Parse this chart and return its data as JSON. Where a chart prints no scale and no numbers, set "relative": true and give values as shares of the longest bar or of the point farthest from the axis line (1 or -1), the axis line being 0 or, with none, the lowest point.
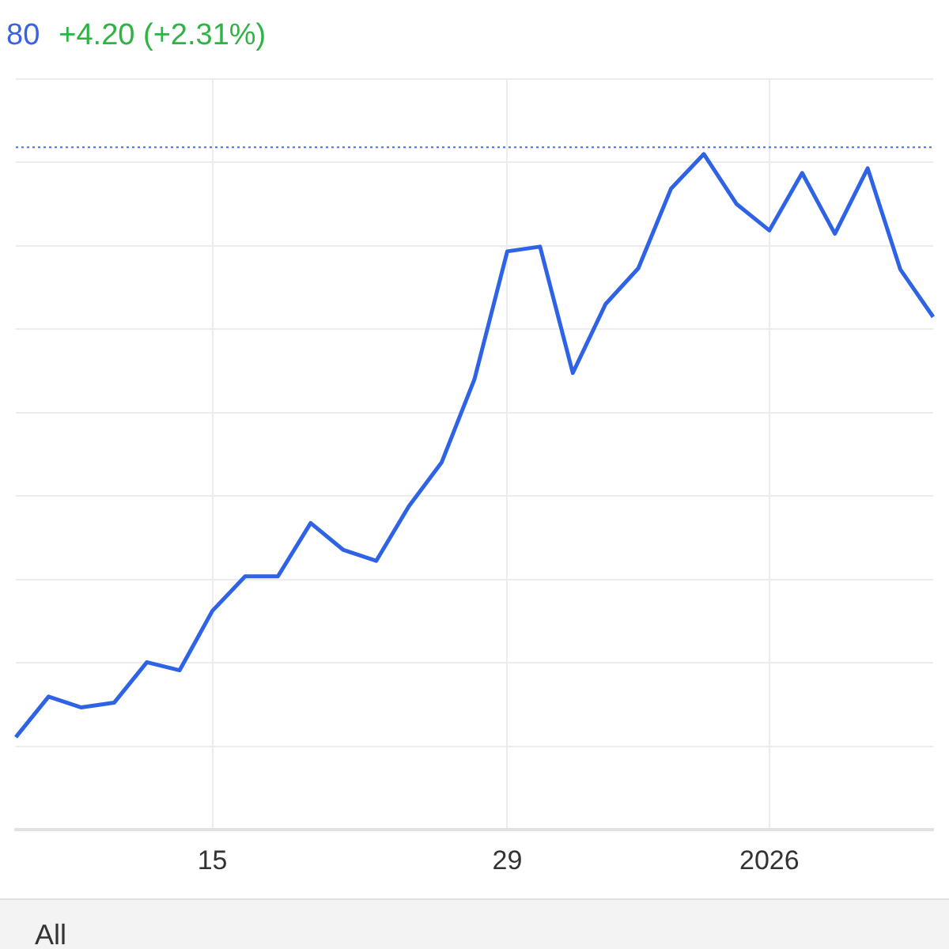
{
  "chart_data": {
    "type": "line",
    "relative": true,
    "annotations": [
      "80",
      "+4.20 (+2.31%)",
      "All"
    ],
    "categories": [
      null,
      null,
      null,
      null,
      null,
      null,
      "15",
      null,
      null,
      null,
      null,
      null,
      null,
      null,
      null,
      "29",
      null,
      null,
      null,
      null,
      null,
      null,
      null,
      "2026",
      null,
      null,
      null,
      null,
      null
    ],
    "series": [
      {
        "color": "#2f63e6",
        "values": [
          0.137,
          0.197,
          0.181,
          0.188,
          0.248,
          0.236,
          0.324,
          0.375,
          0.375,
          0.454,
          0.414,
          0.398,
          0.479,
          0.544,
          0.667,
          0.856,
          0.863,
          0.676,
          0.778,
          0.831,
          0.949,
          1,
          0.926,
          0.887,
          0.972,
          0.882,
          0.979,
          0.829,
          0.759
        ]
      }
    ],
    "ref_lines": [
      {
        "axis": "y",
        "value": 1.01,
        "color": "#4a6fe0",
        "line_style": "dotted"
      }
    ],
    "grid": true,
    "legend": false,
    "marker": "none",
    "line_style": "solid"
  }
}
